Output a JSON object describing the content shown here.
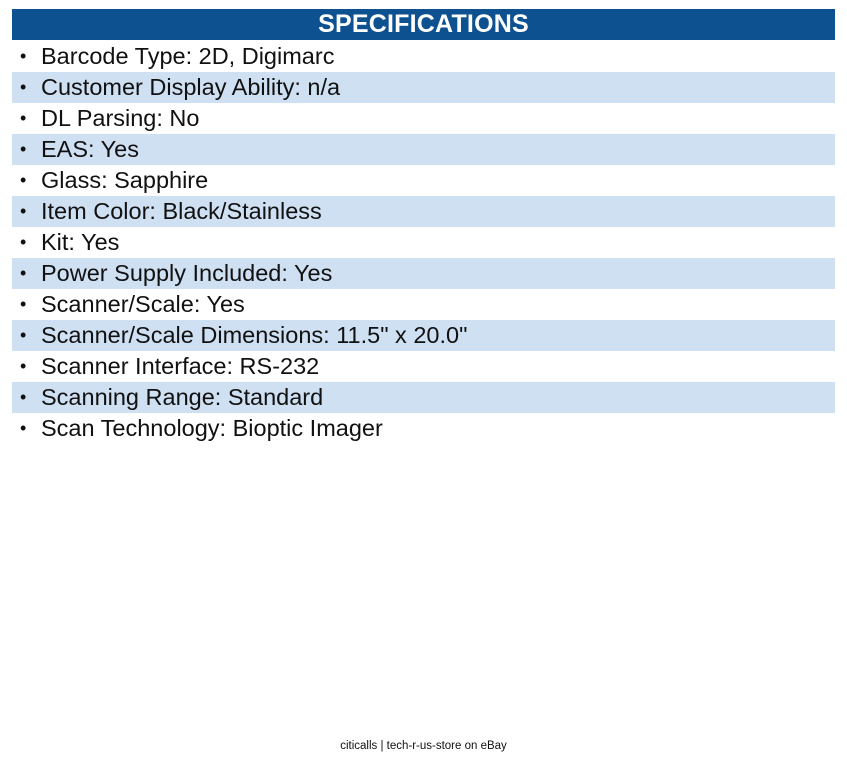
{
  "header": {
    "title": "SPECIFICATIONS"
  },
  "specs": [
    {
      "bullet": "•",
      "text": "Barcode Type: 2D, Digimarc"
    },
    {
      "bullet": "•",
      "text": "Customer Display Ability: n/a"
    },
    {
      "bullet": "•",
      "text": "DL Parsing: No"
    },
    {
      "bullet": "•",
      "text": "EAS: Yes"
    },
    {
      "bullet": "•",
      "text": "Glass: Sapphire"
    },
    {
      "bullet": "•",
      "text": "Item Color: Black/Stainless"
    },
    {
      "bullet": "•",
      "text": "Kit: Yes"
    },
    {
      "bullet": "•",
      "text": "Power Supply Included: Yes"
    },
    {
      "bullet": "•",
      "text": "Scanner/Scale: Yes"
    },
    {
      "bullet": "•",
      "text": "Scanner/Scale Dimensions: 11.5\" x 20.0\""
    },
    {
      "bullet": "•",
      "text": "Scanner Interface: RS-232"
    },
    {
      "bullet": "•",
      "text": "Scanning Range: Standard"
    },
    {
      "bullet": "•",
      "text": "Scan Technology: Bioptic Imager"
    }
  ],
  "footer": {
    "text": "citicalls | tech-r-us-store on eBay"
  },
  "colors": {
    "header_bg": "#0d5191",
    "row_alt_bg": "#cfe0f3"
  }
}
